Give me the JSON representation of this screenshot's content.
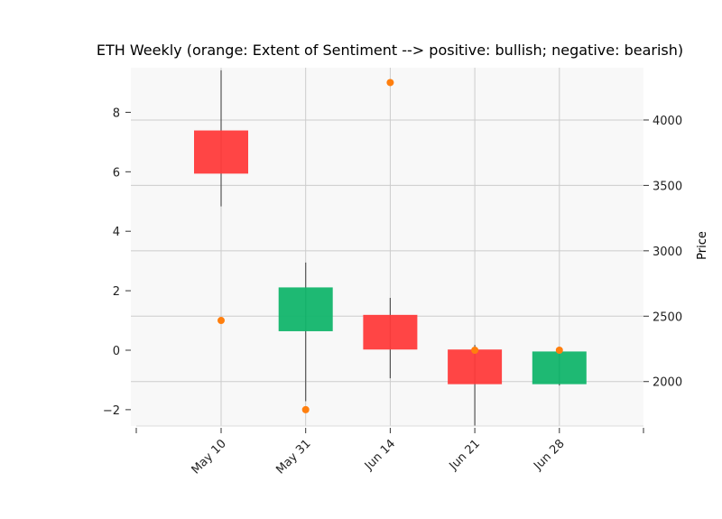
{
  "chart_data": {
    "type": "candlestick",
    "title": "ETH Weekly (orange: Extent of Sentiment --> positive: bullish; negative: bearish)",
    "xlabel": "",
    "categories": [
      "May 10",
      "May 31",
      "Jun 14",
      "Jun 21",
      "Jun 28"
    ],
    "price_axis": {
      "label": "Price",
      "side": "right",
      "ticks": [
        2000,
        2500,
        3000,
        3500,
        4000
      ],
      "tick_labels": [
        "2000",
        "2500",
        "3000",
        "3500",
        "4000"
      ],
      "range": [
        1660,
        4400
      ]
    },
    "sentiment_axis": {
      "label": "",
      "side": "left",
      "ticks": [
        -2,
        0,
        2,
        4,
        6,
        8
      ],
      "tick_labels": [
        "−2",
        "0",
        "2",
        "4",
        "6",
        "8"
      ],
      "range": [
        -2.55,
        9.5
      ]
    },
    "candles": [
      {
        "date": "May 10",
        "open": 3920,
        "high": 4380,
        "low": 3340,
        "close": 3590
      },
      {
        "date": "May 31",
        "open": 2385,
        "high": 2910,
        "low": 1850,
        "close": 2720
      },
      {
        "date": "Jun 14",
        "open": 2510,
        "high": 2640,
        "low": 2025,
        "close": 2245
      },
      {
        "date": "Jun 21",
        "open": 2245,
        "high": 2280,
        "low": 1660,
        "close": 1980
      },
      {
        "date": "Jun 28",
        "open": 1980,
        "high": 2235,
        "low": 1970,
        "close": 2230
      }
    ],
    "sentiment": [
      1.0,
      -2.0,
      9.0,
      0.0,
      0.0
    ],
    "colors": {
      "up": "#12b56c",
      "down": "#ff3b3b",
      "sentiment": "#ff7f0e",
      "wick": "#555555",
      "plot_bg": "#f8f8f8",
      "grid": "#cccccc"
    },
    "grid": true
  }
}
